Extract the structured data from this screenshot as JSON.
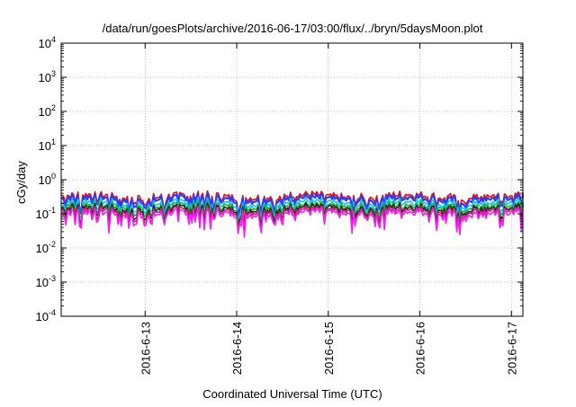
{
  "chart_data": {
    "type": "line",
    "title": "/data/run/goesPlots/archive/2016-06-17/03:00/flux/../bryn/5daysMoon.plot",
    "xlabel": "Coordinated Universal Time (UTC)",
    "ylabel": "cGy/day",
    "y_scale": "log",
    "ylim": [
      0.0001,
      10000
    ],
    "y_ticks": [
      {
        "value": 0.0001,
        "base": "10",
        "exp": "-4"
      },
      {
        "value": 0.001,
        "base": "10",
        "exp": "-3"
      },
      {
        "value": 0.01,
        "base": "10",
        "exp": "-2"
      },
      {
        "value": 0.1,
        "base": "10",
        "exp": "-1"
      },
      {
        "value": 1,
        "base": "10",
        "exp": "0"
      },
      {
        "value": 10,
        "base": "10",
        "exp": "1"
      },
      {
        "value": 100,
        "base": "10",
        "exp": "2"
      },
      {
        "value": 1000,
        "base": "10",
        "exp": "3"
      },
      {
        "value": 10000,
        "base": "10",
        "exp": "4"
      }
    ],
    "xlim": [
      "2016-06-12 02:00",
      "2016-06-17 03:00"
    ],
    "x_ticks": [
      {
        "value": "2016-06-13 00:00",
        "label": "2016-6-13"
      },
      {
        "value": "2016-06-14 00:00",
        "label": "2016-6-14"
      },
      {
        "value": "2016-06-15 00:00",
        "label": "2016-6-15"
      },
      {
        "value": "2016-06-16 00:00",
        "label": "2016-6-16"
      },
      {
        "value": "2016-06-17 00:00",
        "label": "2016-6-17"
      }
    ],
    "grid": true,
    "legend": "none",
    "series": [
      {
        "color": "#e01010",
        "base": 0.33
      },
      {
        "color": "#2a3cff",
        "base": 0.28
      },
      {
        "color": "#10c8e8",
        "base": 0.21
      },
      {
        "color": "#20b030",
        "base": 0.17
      },
      {
        "color": "#202020",
        "base": 0.145
      },
      {
        "color": "#c02070",
        "base": 0.125
      },
      {
        "color": "#f020f0",
        "base": 0.105
      }
    ],
    "dips": [
      {
        "time": "2016-06-12 07:00",
        "min": 0.022
      },
      {
        "time": "2016-06-12 19:50",
        "min": 0.04
      },
      {
        "time": "2016-06-13 05:00",
        "min": 0.05
      },
      {
        "time": "2016-06-13 18:00",
        "min": 0.06
      },
      {
        "time": "2016-06-14 00:30",
        "min": 0.03
      },
      {
        "time": "2016-06-14 10:00",
        "min": 0.035
      },
      {
        "time": "2016-06-15 10:00",
        "min": 0.07
      },
      {
        "time": "2016-06-16 12:00",
        "min": 0.07
      },
      {
        "time": "2016-06-17 00:30",
        "min": 0.07
      }
    ]
  }
}
